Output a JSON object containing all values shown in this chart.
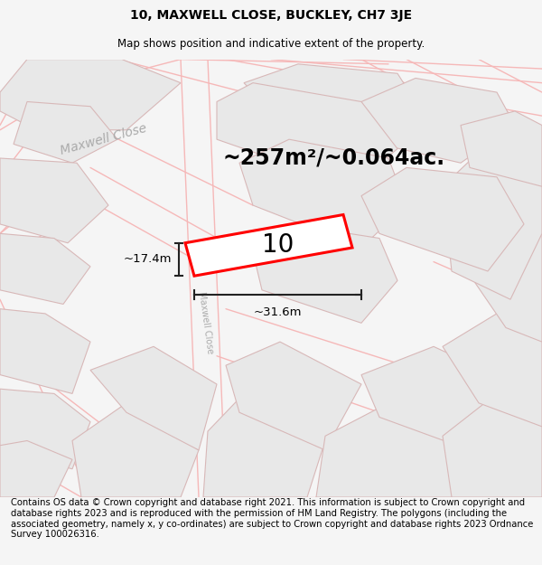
{
  "title_line1": "10, MAXWELL CLOSE, BUCKLEY, CH7 3JE",
  "title_line2": "Map shows position and indicative extent of the property.",
  "area_text": "~257m²/~0.064ac.",
  "height_label": "~17.4m",
  "width_label": "~31.6m",
  "number_label": "10",
  "street_label": "Maxwell Close",
  "footer_text": "Contains OS data © Crown copyright and database right 2021. This information is subject to Crown copyright and database rights 2023 and is reproduced with the permission of HM Land Registry. The polygons (including the associated geometry, namely x, y co-ordinates) are subject to Crown copyright and database rights 2023 Ordnance Survey 100026316.",
  "bg_color": "#f5f5f5",
  "map_bg": "#ffffff",
  "road_color": "#f5b8b8",
  "building_color": "#e8e8e8",
  "building_edge": "#d8b8b8",
  "property_color": "#ff0000",
  "text_color": "#000000",
  "dim_color": "#222222",
  "street_label_color": "#aaaaaa",
  "title_fontsize": 10,
  "subtitle_fontsize": 8.5,
  "area_fontsize": 17,
  "label_fontsize": 9.5,
  "number_fontsize": 20,
  "footer_fontsize": 7.2
}
